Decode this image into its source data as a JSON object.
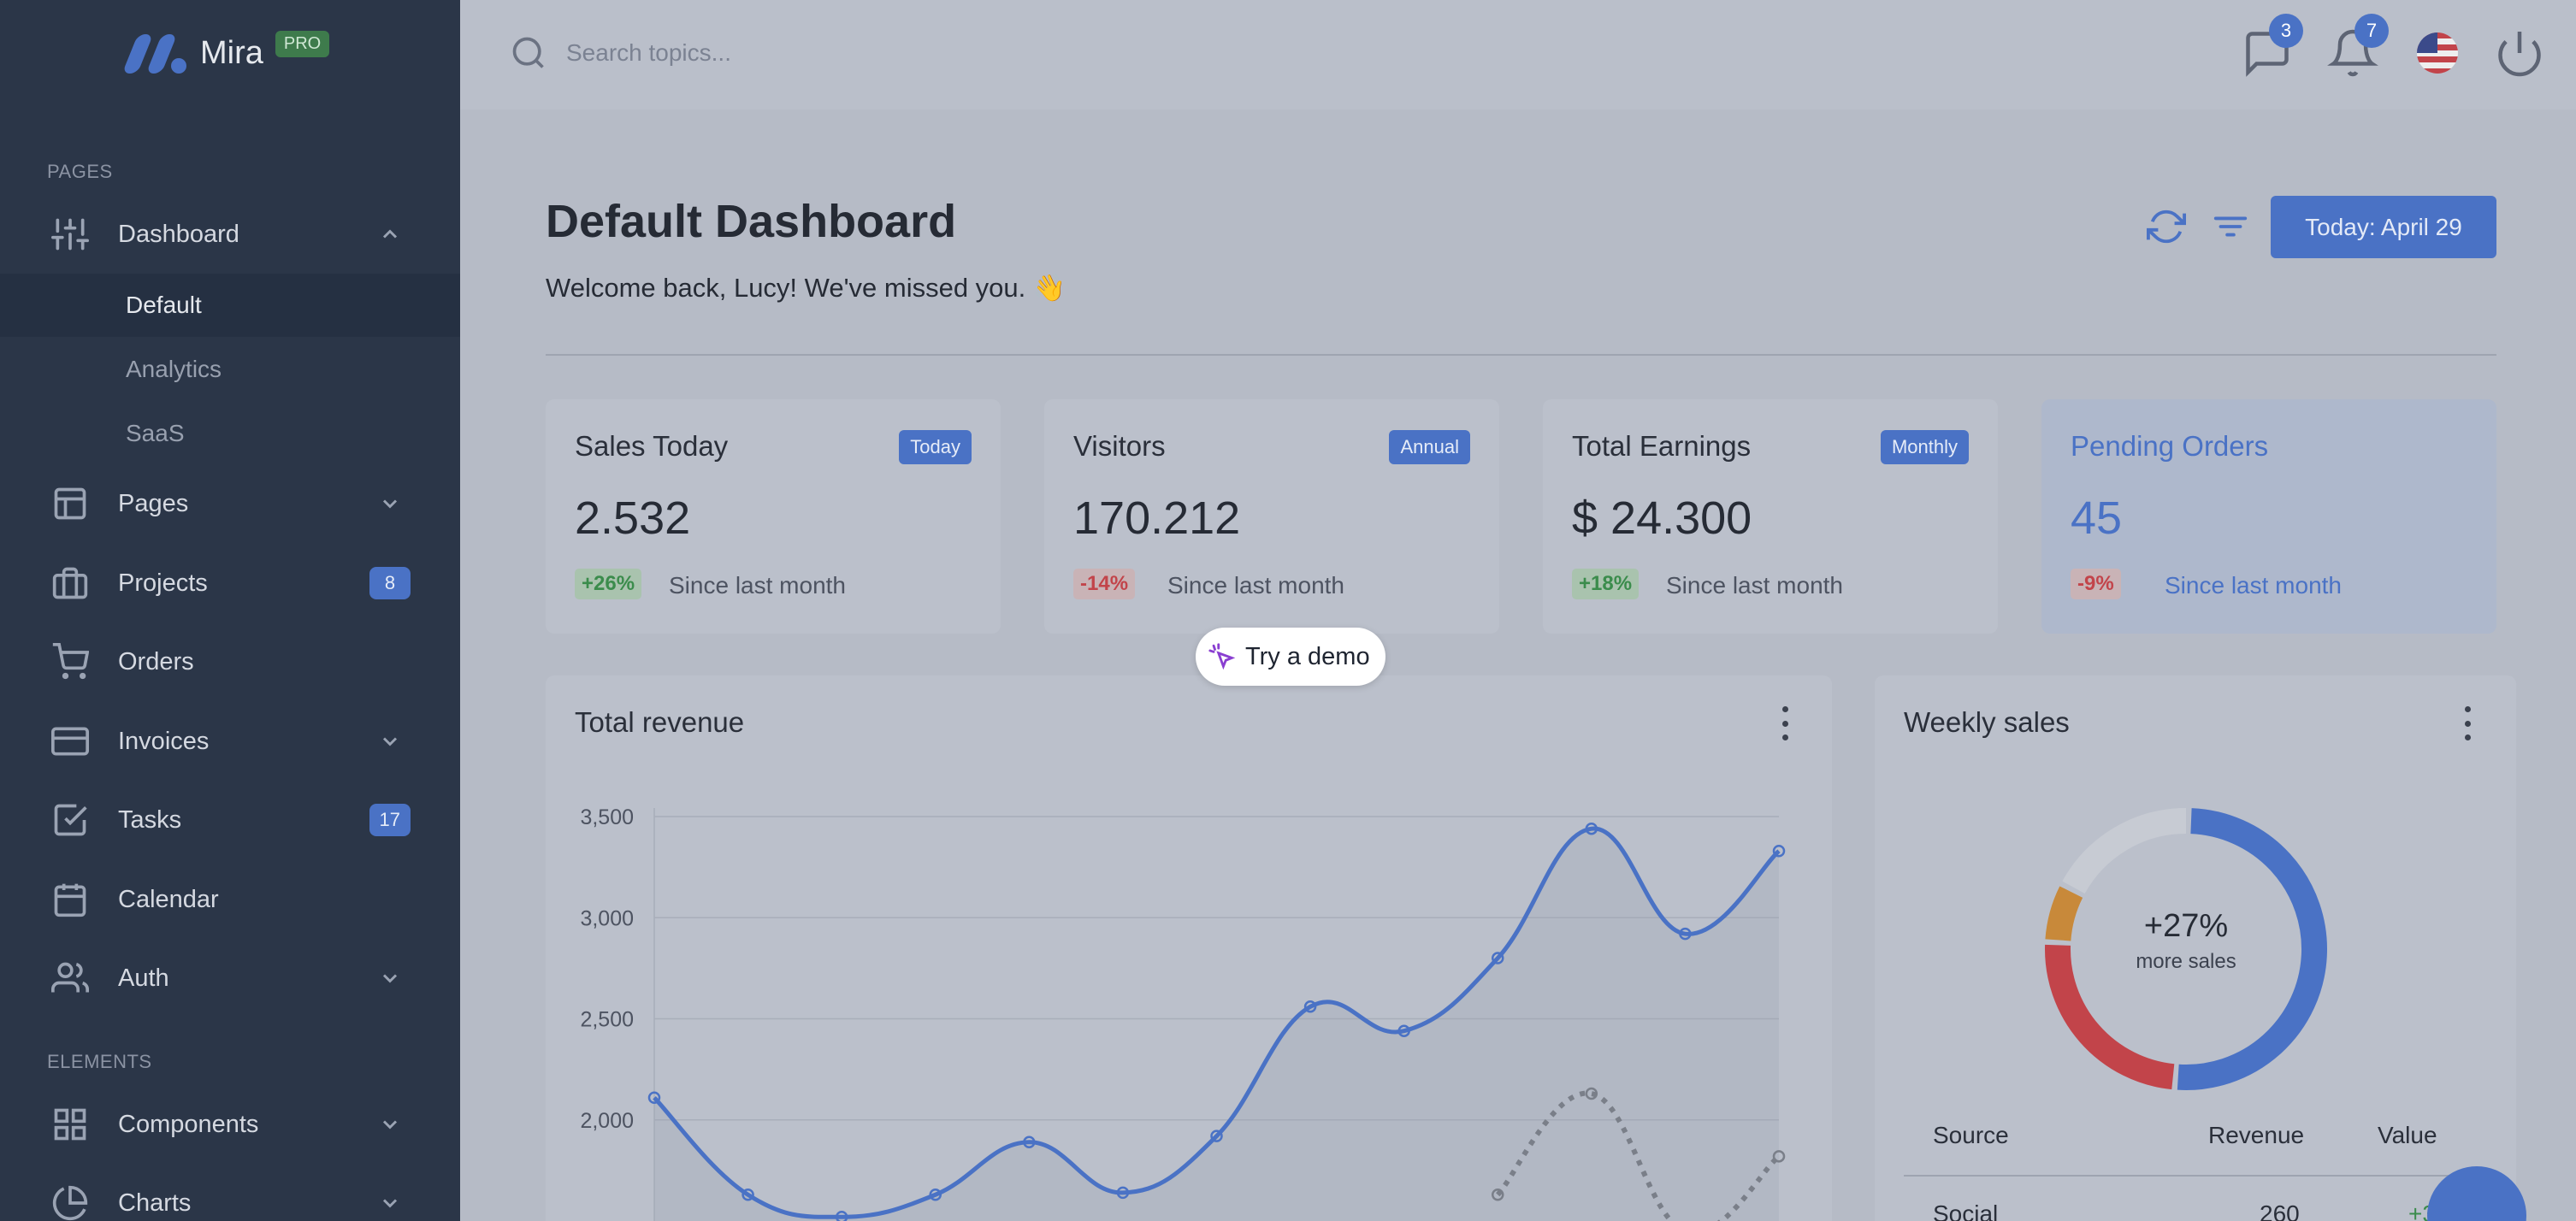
{
  "brand": {
    "name": "Mira",
    "badge": "PRO"
  },
  "sidebar": {
    "sections": {
      "pages": "PAGES",
      "elements": "ELEMENTS"
    },
    "items": [
      {
        "label": "Dashboard"
      },
      {
        "label": "Pages"
      },
      {
        "label": "Projects",
        "badge": "8"
      },
      {
        "label": "Orders"
      },
      {
        "label": "Invoices"
      },
      {
        "label": "Tasks",
        "badge": "17"
      },
      {
        "label": "Calendar"
      },
      {
        "label": "Auth"
      },
      {
        "label": "Components"
      },
      {
        "label": "Charts"
      }
    ],
    "dashboard_sub": [
      "Default",
      "Analytics",
      "SaaS"
    ]
  },
  "topbar": {
    "search_placeholder": "Search topics...",
    "messages_count": "3",
    "notifications_count": "7"
  },
  "header": {
    "title": "Default Dashboard",
    "welcome": "Welcome back, Lucy! We've missed you. 👋",
    "today_button": "Today: April 29"
  },
  "stats": [
    {
      "title": "Sales Today",
      "tag": "Today",
      "value": "2.532",
      "delta": "+26%",
      "since": "Since last month"
    },
    {
      "title": "Visitors",
      "tag": "Annual",
      "value": "170.212",
      "delta": "-14%",
      "since": "Since last month"
    },
    {
      "title": "Total Earnings",
      "tag": "Monthly",
      "value": "$ 24.300",
      "delta": "+18%",
      "since": "Since last month"
    },
    {
      "title": "Pending Orders",
      "tag": "",
      "value": "45",
      "delta": "-9%",
      "since": "Since last month"
    }
  ],
  "demo_button": "Try a demo",
  "revenue": {
    "title": "Total revenue",
    "y_ticks": [
      "3,500",
      "3,000",
      "2,500",
      "2,000"
    ]
  },
  "weekly": {
    "title": "Weekly sales",
    "center_value": "+27%",
    "center_label": "more sales",
    "table_headers": [
      "Source",
      "Revenue",
      "Value"
    ],
    "rows": [
      {
        "source": "Social",
        "revenue": "260",
        "value": "+35%"
      }
    ]
  },
  "colors": {
    "accent": "#4a72c5",
    "sidebar": "#2b3648",
    "success": "#3b8c4c",
    "danger": "#c2444a",
    "warning": "#c8893a"
  },
  "chart_data": [
    {
      "type": "line",
      "title": "Total revenue",
      "ylim": [
        1500,
        3500
      ],
      "series": [
        {
          "values": [
            2110,
            1630,
            1520,
            1630,
            1890,
            1640,
            1920,
            2560,
            2440,
            2800,
            3440,
            2920,
            3330
          ]
        },
        {
          "values": [
            null,
            null,
            null,
            null,
            null,
            null,
            null,
            null,
            null,
            1630,
            2130,
            1450,
            1820
          ]
        }
      ]
    },
    {
      "type": "pie",
      "title": "Weekly sales",
      "values": [
        260,
        125,
        35,
        90
      ]
    }
  ]
}
